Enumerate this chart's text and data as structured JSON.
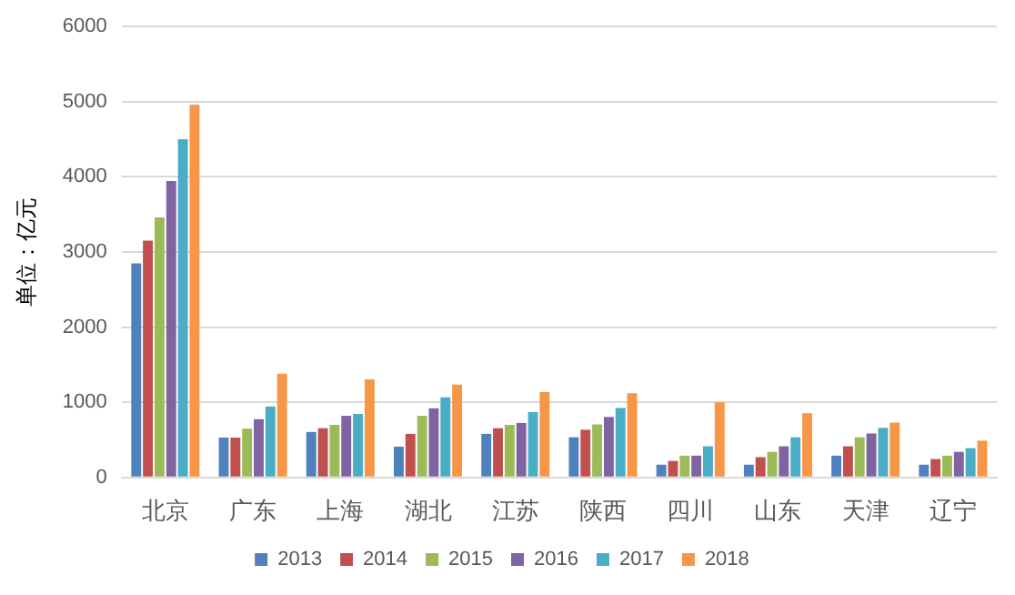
{
  "chart_data": {
    "type": "bar",
    "ylabel": "单位：亿元",
    "categories": [
      "北京",
      "广东",
      "上海",
      "湖北",
      "江苏",
      "陕西",
      "四川",
      "山东",
      "天津",
      "辽宁"
    ],
    "series": [
      {
        "name": "2013",
        "color": "#4f81bd",
        "values": [
          2850,
          530,
          605,
          410,
          580,
          535,
          170,
          170,
          290,
          170
        ]
      },
      {
        "name": "2014",
        "color": "#c0504d",
        "values": [
          3150,
          530,
          655,
          580,
          655,
          635,
          220,
          270,
          415,
          245
        ]
      },
      {
        "name": "2015",
        "color": "#9bbb59",
        "values": [
          3460,
          650,
          700,
          820,
          700,
          705,
          290,
          340,
          535,
          290
        ]
      },
      {
        "name": "2016",
        "color": "#8064a2",
        "values": [
          3945,
          775,
          820,
          920,
          725,
          805,
          290,
          415,
          585,
          340
        ]
      },
      {
        "name": "2017",
        "color": "#4bacc6",
        "values": [
          4500,
          945,
          845,
          1065,
          870,
          925,
          415,
          535,
          660,
          390
        ]
      },
      {
        "name": "2018",
        "color": "#f79646",
        "values": [
          4960,
          1380,
          1305,
          1235,
          1135,
          1120,
          1000,
          855,
          730,
          490
        ]
      }
    ],
    "ylim": [
      0,
      6000
    ],
    "yticks": [
      0,
      1000,
      2000,
      3000,
      4000,
      5000,
      6000
    ],
    "grid": "y",
    "legend": "bottom"
  }
}
